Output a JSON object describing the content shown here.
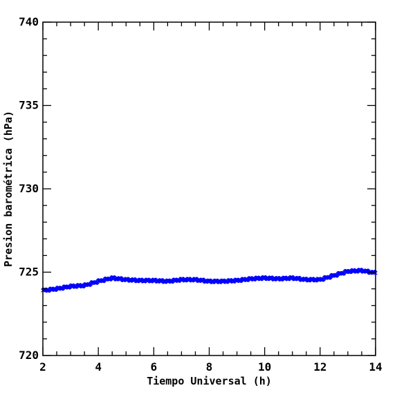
{
  "chart_data": {
    "type": "scatter",
    "title": "",
    "xlabel": "Tiempo Universal (h)",
    "ylabel": "Presion barométrica (hPa)",
    "xlim": [
      2,
      14
    ],
    "ylim": [
      720,
      740
    ],
    "x_ticks": [
      2,
      4,
      6,
      8,
      10,
      12,
      14
    ],
    "y_ticks": [
      720,
      725,
      730,
      735,
      740
    ],
    "x_tick_labels": [
      "2",
      "4",
      "6",
      "8",
      "10",
      "12",
      "14"
    ],
    "y_tick_labels": [
      "720",
      "725",
      "730",
      "735",
      "740"
    ],
    "grid": false,
    "marker": "x",
    "series_color": "#0000ff",
    "series": [
      {
        "x": [
          2.0,
          2.5,
          3.0,
          3.5,
          4.0,
          4.5,
          5.0,
          5.5,
          6.0,
          6.5,
          7.0,
          7.5,
          8.0,
          8.5,
          9.0,
          9.5,
          10.0,
          10.5,
          11.0,
          11.5,
          12.0,
          12.5,
          13.0,
          13.5,
          14.0
        ],
        "y": [
          723.9,
          724.0,
          724.15,
          724.2,
          724.45,
          724.65,
          724.55,
          724.5,
          724.5,
          724.45,
          724.55,
          724.55,
          724.45,
          724.45,
          724.5,
          724.6,
          724.65,
          724.6,
          724.65,
          724.55,
          724.55,
          724.8,
          725.05,
          725.1,
          724.95
        ]
      }
    ]
  }
}
